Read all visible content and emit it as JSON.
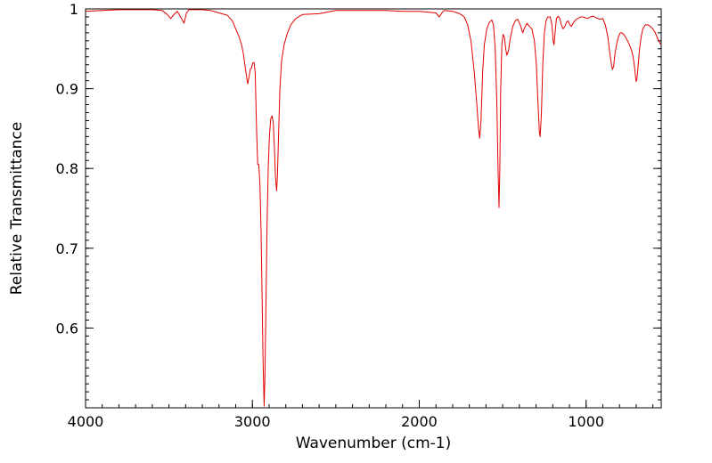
{
  "chart_data": {
    "type": "line",
    "title": "",
    "xlabel": "Wavenumber (cm-1)",
    "ylabel": "Relative Transmittance",
    "xlim": [
      4000,
      550
    ],
    "ylim": [
      0.5,
      1.0
    ],
    "x_reversed": true,
    "grid": false,
    "legend": "none",
    "x_ticks": [
      {
        "value": 4000,
        "label": "4000"
      },
      {
        "value": 3000,
        "label": "3000"
      },
      {
        "value": 2000,
        "label": "2000"
      },
      {
        "value": 1000,
        "label": "1000"
      }
    ],
    "y_ticks": [
      {
        "value": 1.0,
        "label": "1"
      },
      {
        "value": 0.9,
        "label": "0.9"
      },
      {
        "value": 0.8,
        "label": "0.8"
      },
      {
        "value": 0.7,
        "label": "0.7"
      },
      {
        "value": 0.6,
        "label": "0.6"
      }
    ],
    "x_minor_step": 100,
    "y_minor_step": 0.01,
    "series": [
      {
        "color": "#e00000",
        "points": [
          [
            4000,
            0.997
          ],
          [
            3900,
            0.998
          ],
          [
            3800,
            0.999
          ],
          [
            3700,
            0.999
          ],
          [
            3600,
            0.999
          ],
          [
            3540,
            0.998
          ],
          [
            3510,
            0.993
          ],
          [
            3490,
            0.988
          ],
          [
            3470,
            0.993
          ],
          [
            3450,
            0.997
          ],
          [
            3425,
            0.988
          ],
          [
            3410,
            0.982
          ],
          [
            3395,
            0.995
          ],
          [
            3380,
            0.999
          ],
          [
            3300,
            0.999
          ],
          [
            3250,
            0.998
          ],
          [
            3200,
            0.995
          ],
          [
            3150,
            0.992
          ],
          [
            3120,
            0.985
          ],
          [
            3100,
            0.975
          ],
          [
            3080,
            0.965
          ],
          [
            3065,
            0.955
          ],
          [
            3055,
            0.945
          ],
          [
            3045,
            0.93
          ],
          [
            3035,
            0.915
          ],
          [
            3028,
            0.906
          ],
          [
            3020,
            0.915
          ],
          [
            3012,
            0.925
          ],
          [
            3005,
            0.926
          ],
          [
            2998,
            0.932
          ],
          [
            2990,
            0.933
          ],
          [
            2983,
            0.92
          ],
          [
            2975,
            0.85
          ],
          [
            2968,
            0.805
          ],
          [
            2962,
            0.805
          ],
          [
            2955,
            0.78
          ],
          [
            2948,
            0.72
          ],
          [
            2942,
            0.64
          ],
          [
            2936,
            0.56
          ],
          [
            2930,
            0.502
          ],
          [
            2925,
            0.54
          ],
          [
            2918,
            0.64
          ],
          [
            2912,
            0.73
          ],
          [
            2905,
            0.8
          ],
          [
            2898,
            0.84
          ],
          [
            2890,
            0.862
          ],
          [
            2882,
            0.866
          ],
          [
            2875,
            0.857
          ],
          [
            2868,
            0.825
          ],
          [
            2862,
            0.79
          ],
          [
            2855,
            0.772
          ],
          [
            2850,
            0.79
          ],
          [
            2842,
            0.85
          ],
          [
            2835,
            0.9
          ],
          [
            2825,
            0.935
          ],
          [
            2810,
            0.955
          ],
          [
            2790,
            0.97
          ],
          [
            2770,
            0.98
          ],
          [
            2740,
            0.988
          ],
          [
            2700,
            0.993
          ],
          [
            2600,
            0.994
          ],
          [
            2500,
            0.998
          ],
          [
            2400,
            0.998
          ],
          [
            2300,
            0.998
          ],
          [
            2200,
            0.998
          ],
          [
            2100,
            0.997
          ],
          [
            2000,
            0.997
          ],
          [
            1950,
            0.996
          ],
          [
            1900,
            0.995
          ],
          [
            1880,
            0.99
          ],
          [
            1865,
            0.995
          ],
          [
            1850,
            0.998
          ],
          [
            1800,
            0.997
          ],
          [
            1770,
            0.995
          ],
          [
            1750,
            0.993
          ],
          [
            1730,
            0.99
          ],
          [
            1710,
            0.98
          ],
          [
            1690,
            0.96
          ],
          [
            1670,
            0.92
          ],
          [
            1655,
            0.88
          ],
          [
            1645,
            0.85
          ],
          [
            1638,
            0.838
          ],
          [
            1630,
            0.86
          ],
          [
            1620,
            0.92
          ],
          [
            1610,
            0.955
          ],
          [
            1595,
            0.975
          ],
          [
            1580,
            0.983
          ],
          [
            1565,
            0.986
          ],
          [
            1555,
            0.98
          ],
          [
            1545,
            0.95
          ],
          [
            1535,
            0.88
          ],
          [
            1528,
            0.8
          ],
          [
            1522,
            0.751
          ],
          [
            1517,
            0.8
          ],
          [
            1512,
            0.9
          ],
          [
            1505,
            0.955
          ],
          [
            1498,
            0.968
          ],
          [
            1490,
            0.965
          ],
          [
            1482,
            0.95
          ],
          [
            1475,
            0.942
          ],
          [
            1465,
            0.948
          ],
          [
            1455,
            0.962
          ],
          [
            1440,
            0.978
          ],
          [
            1425,
            0.985
          ],
          [
            1410,
            0.987
          ],
          [
            1395,
            0.98
          ],
          [
            1380,
            0.97
          ],
          [
            1370,
            0.976
          ],
          [
            1355,
            0.982
          ],
          [
            1340,
            0.978
          ],
          [
            1325,
            0.975
          ],
          [
            1310,
            0.96
          ],
          [
            1298,
            0.93
          ],
          [
            1288,
            0.88
          ],
          [
            1280,
            0.845
          ],
          [
            1275,
            0.84
          ],
          [
            1268,
            0.87
          ],
          [
            1260,
            0.93
          ],
          [
            1250,
            0.97
          ],
          [
            1240,
            0.985
          ],
          [
            1230,
            0.99
          ],
          [
            1215,
            0.99
          ],
          [
            1205,
            0.98
          ],
          [
            1198,
            0.96
          ],
          [
            1192,
            0.955
          ],
          [
            1186,
            0.97
          ],
          [
            1178,
            0.988
          ],
          [
            1168,
            0.991
          ],
          [
            1158,
            0.988
          ],
          [
            1148,
            0.98
          ],
          [
            1138,
            0.975
          ],
          [
            1128,
            0.978
          ],
          [
            1118,
            0.983
          ],
          [
            1108,
            0.985
          ],
          [
            1098,
            0.98
          ],
          [
            1088,
            0.978
          ],
          [
            1078,
            0.982
          ],
          [
            1065,
            0.986
          ],
          [
            1050,
            0.988
          ],
          [
            1035,
            0.99
          ],
          [
            1020,
            0.99
          ],
          [
            1005,
            0.989
          ],
          [
            990,
            0.988
          ],
          [
            975,
            0.99
          ],
          [
            960,
            0.991
          ],
          [
            940,
            0.989
          ],
          [
            920,
            0.987
          ],
          [
            900,
            0.988
          ],
          [
            885,
            0.98
          ],
          [
            870,
            0.965
          ],
          [
            858,
            0.945
          ],
          [
            848,
            0.93
          ],
          [
            842,
            0.924
          ],
          [
            835,
            0.928
          ],
          [
            826,
            0.945
          ],
          [
            815,
            0.958
          ],
          [
            805,
            0.966
          ],
          [
            795,
            0.97
          ],
          [
            785,
            0.97
          ],
          [
            775,
            0.968
          ],
          [
            765,
            0.965
          ],
          [
            752,
            0.96
          ],
          [
            740,
            0.955
          ],
          [
            728,
            0.948
          ],
          [
            718,
            0.94
          ],
          [
            710,
            0.928
          ],
          [
            704,
            0.915
          ],
          [
            700,
            0.909
          ],
          [
            695,
            0.912
          ],
          [
            688,
            0.93
          ],
          [
            680,
            0.95
          ],
          [
            670,
            0.965
          ],
          [
            660,
            0.975
          ],
          [
            645,
            0.98
          ],
          [
            630,
            0.98
          ],
          [
            615,
            0.978
          ],
          [
            600,
            0.975
          ],
          [
            585,
            0.97
          ],
          [
            570,
            0.962
          ],
          [
            560,
            0.958
          ],
          [
            550,
            0.955
          ]
        ]
      }
    ]
  }
}
